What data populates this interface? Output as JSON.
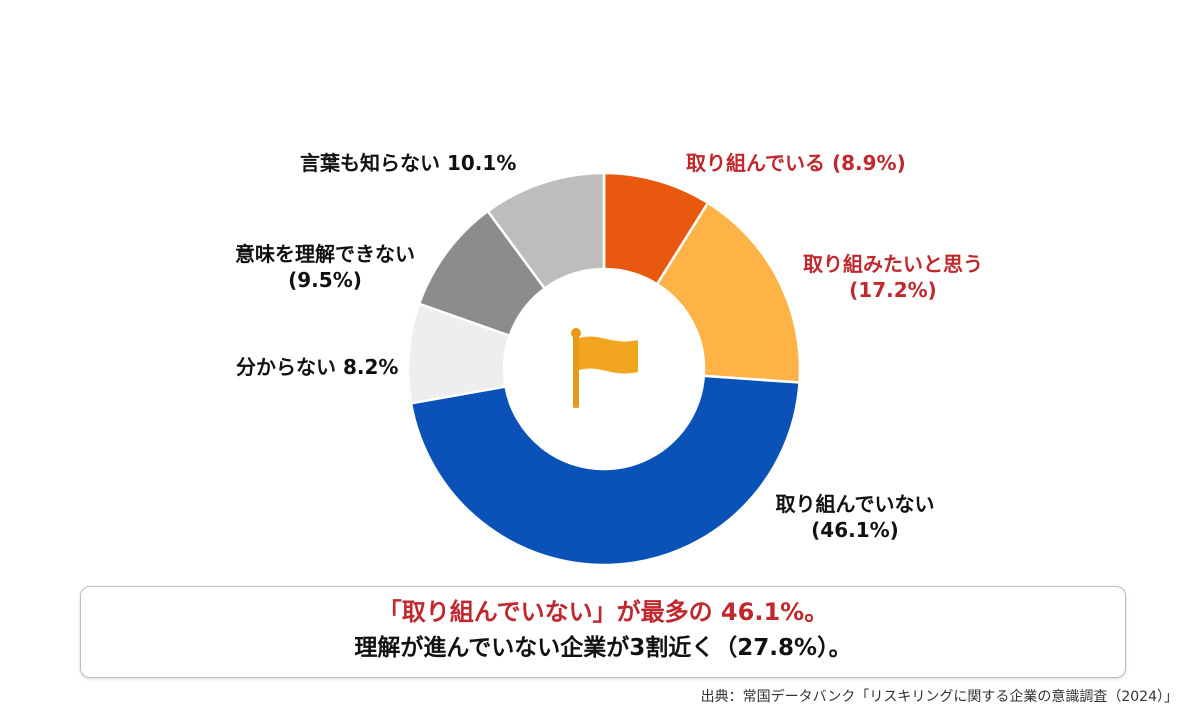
{
  "chart_data": {
    "type": "pie",
    "donut": true,
    "center_icon": "flag-icon",
    "slices": [
      {
        "label": "取り組んでいる",
        "value_text": "(8.9%)",
        "value": 8.9,
        "color": "#e8580e",
        "label_color": "#c0282d"
      },
      {
        "label": "取り組みたいと思う",
        "value_text": "(17.2%)",
        "value": 17.2,
        "color": "#ffb347",
        "label_color": "#c0282d"
      },
      {
        "label": "取り組んでいない",
        "value_text": "(46.1%)",
        "value": 46.1,
        "color": "#0a52b8",
        "label_color": "#111111"
      },
      {
        "label": "分からない",
        "value_text": "8.2%",
        "value": 8.2,
        "color": "#eeeeee",
        "label_color": "#111111"
      },
      {
        "label": "意味を理解できない",
        "value_text": "(9.5%)",
        "value": 9.5,
        "color": "#8c8c8c",
        "label_color": "#111111"
      },
      {
        "label": "言葉も知らない",
        "value_text": "10.1%",
        "value": 10.1,
        "color": "#bdbdbd",
        "label_color": "#111111"
      }
    ]
  },
  "summary": {
    "line1": "「取り組んでいない」が最多の 46.1%。",
    "line2": "理解が進んでいない企業が3割近く（27.8%）。"
  },
  "source": "出典：常国データバンク「リスキリングに関する企業の意識調査（2024）」"
}
